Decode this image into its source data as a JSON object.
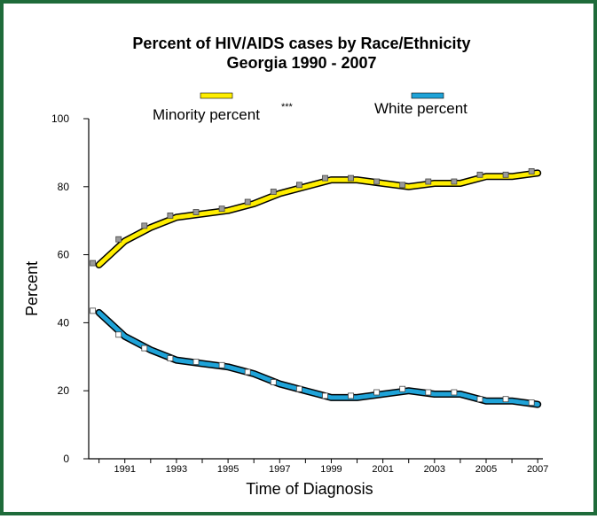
{
  "chart_data": {
    "type": "line",
    "title_line1": "Percent of HIV/AIDS cases by Race/Ethnicity",
    "title_line2": "Georgia 1990 - 2007",
    "xlabel": "Time of Diagnosis",
    "ylabel": "Percent",
    "ylim": [
      0,
      100
    ],
    "xlim": [
      1990,
      2007
    ],
    "yticks": [
      0,
      20,
      40,
      60,
      80,
      100
    ],
    "xtick_labels": [
      "1991",
      "1993",
      "1995",
      "1997",
      "1999",
      "2001",
      "2003",
      "2005",
      "2007"
    ],
    "x": [
      1990,
      1991,
      1992,
      1993,
      1994,
      1995,
      1996,
      1997,
      1998,
      1999,
      2000,
      2001,
      2002,
      2003,
      2004,
      2005,
      2006,
      2007
    ],
    "grid": false,
    "legend_position": "top",
    "series": [
      {
        "name": "Minority percent",
        "marker_text": "***",
        "color": "#ffee00",
        "values": [
          57,
          64,
          68,
          71,
          72,
          73,
          75,
          78,
          80,
          82,
          82,
          81,
          80,
          81,
          81,
          83,
          83,
          84
        ]
      },
      {
        "name": "White percent",
        "color": "#1fa3d8",
        "values": [
          43,
          36,
          32,
          29,
          28,
          27,
          25,
          22,
          20,
          18,
          18,
          19,
          20,
          19,
          19,
          17,
          17,
          16
        ]
      }
    ]
  }
}
